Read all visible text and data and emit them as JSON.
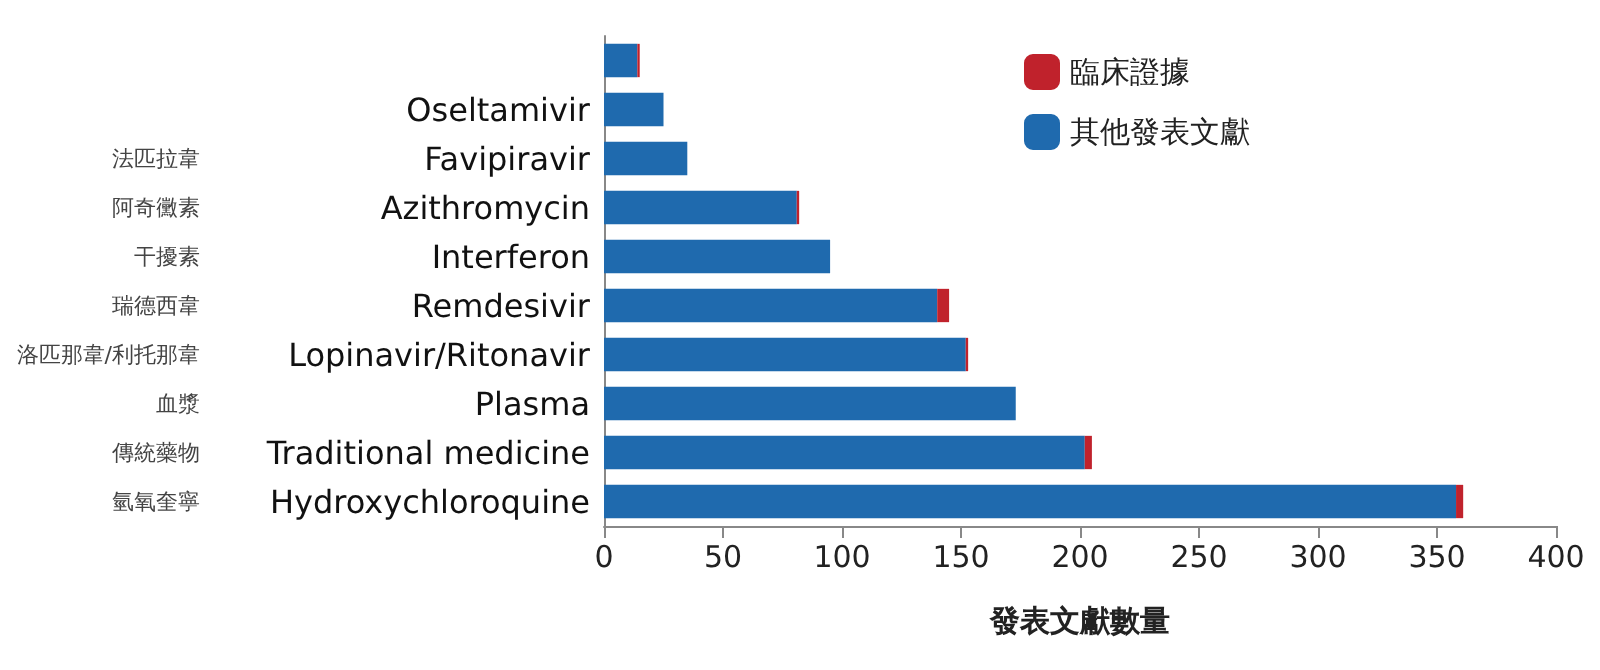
{
  "chart_data": {
    "type": "bar",
    "orientation": "horizontal",
    "stacked": true,
    "xlabel": "發表文獻數量",
    "categories": [
      null,
      "Oseltamivir",
      "Favipiravir",
      "Azithromycin",
      "Interferon",
      "Remdesivir",
      "Lopinavir/Ritonavir",
      "Plasma",
      "Traditional medicine",
      "Hydroxychloroquine"
    ],
    "y2_categories": [
      null,
      null,
      "法匹拉韋",
      "阿奇黴素",
      "干擾素",
      "瑞德西韋",
      "洛匹那韋/利托那韋",
      "血漿",
      "傳統藥物",
      "氫氧奎寧"
    ],
    "series": [
      {
        "name": "其他發表文獻",
        "color": "#1f6aae",
        "values": [
          14,
          25,
          35,
          81,
          95,
          140,
          152,
          173,
          202,
          358
        ]
      },
      {
        "name": "臨床證據",
        "color": "#c0222c",
        "values": [
          1,
          null,
          null,
          1,
          null,
          5,
          1,
          null,
          3,
          3
        ]
      }
    ],
    "xlim": [
      0,
      400
    ],
    "xticks": [
      0,
      50,
      100,
      150,
      200,
      250,
      300,
      350,
      400
    ],
    "grid": false,
    "legend": "top right"
  }
}
